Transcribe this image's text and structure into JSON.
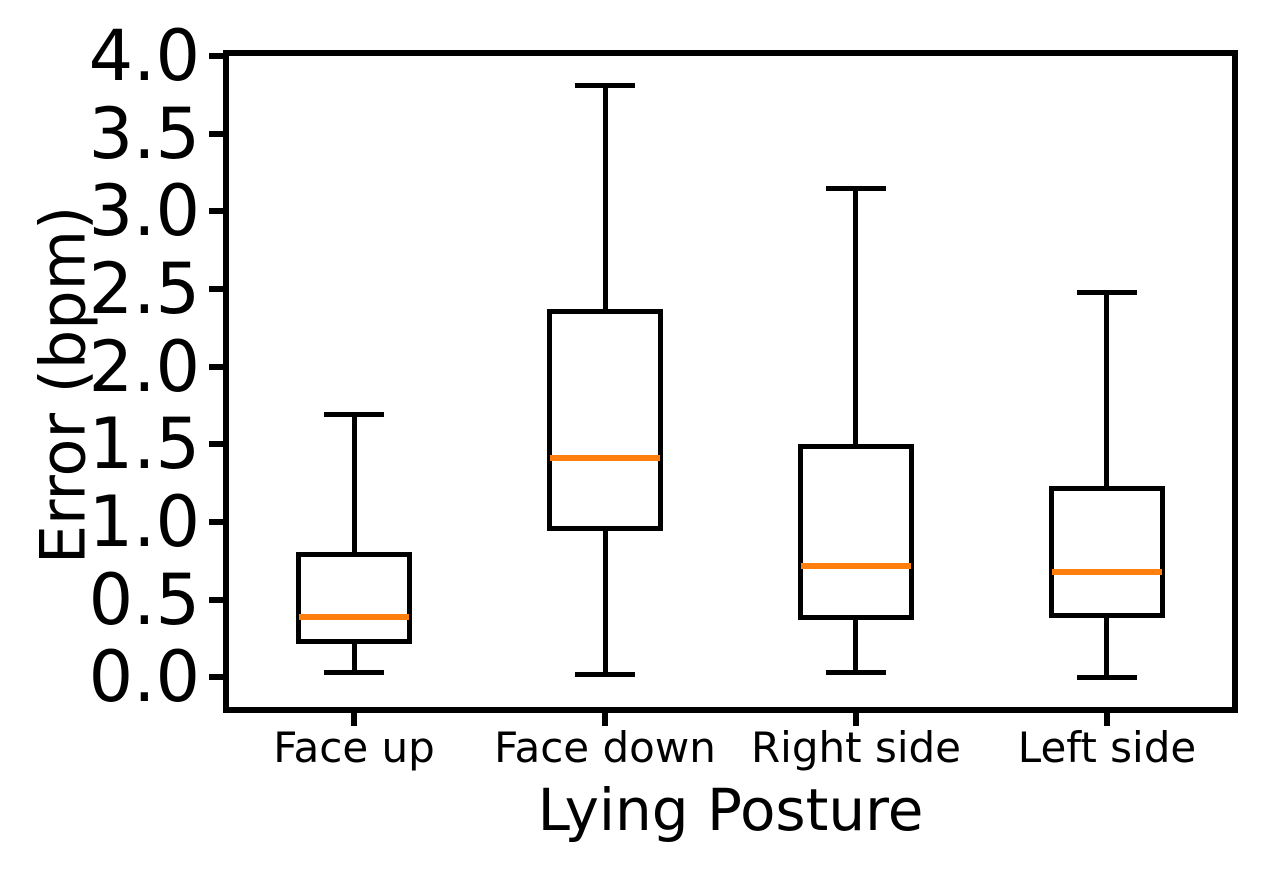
{
  "chart_data": {
    "type": "boxplot",
    "title": "",
    "xlabel": "Lying Posture",
    "ylabel": "Error (bpm)",
    "categories": [
      "Face up",
      "Face down",
      "Right side",
      "Left side"
    ],
    "ylim": [
      -0.19,
      4.0
    ],
    "yticks": [
      0.0,
      0.5,
      1.0,
      1.5,
      2.0,
      2.5,
      3.0,
      3.5,
      4.0
    ],
    "ytick_labels": [
      "0.0",
      "0.5",
      "1.0",
      "1.5",
      "2.0",
      "2.5",
      "3.0",
      "3.5",
      "4.0"
    ],
    "grid": false,
    "legend": "none",
    "colors": {
      "box_line": "#000000",
      "median": "#ff7f0e",
      "background": "#ffffff",
      "text": "#000000"
    },
    "boxes": [
      {
        "category": "Face up",
        "whisker_low": 0.03,
        "q1": 0.22,
        "median": 0.39,
        "q3": 0.81,
        "whisker_high": 1.69
      },
      {
        "category": "Face down",
        "whisker_low": 0.02,
        "q1": 0.94,
        "median": 1.41,
        "q3": 2.37,
        "whisker_high": 3.81
      },
      {
        "category": "Right side",
        "whisker_low": 0.03,
        "q1": 0.37,
        "median": 0.72,
        "q3": 1.5,
        "whisker_high": 3.15
      },
      {
        "category": "Left side",
        "whisker_low": 0.0,
        "q1": 0.38,
        "median": 0.68,
        "q3": 1.23,
        "whisker_high": 2.48
      }
    ]
  }
}
